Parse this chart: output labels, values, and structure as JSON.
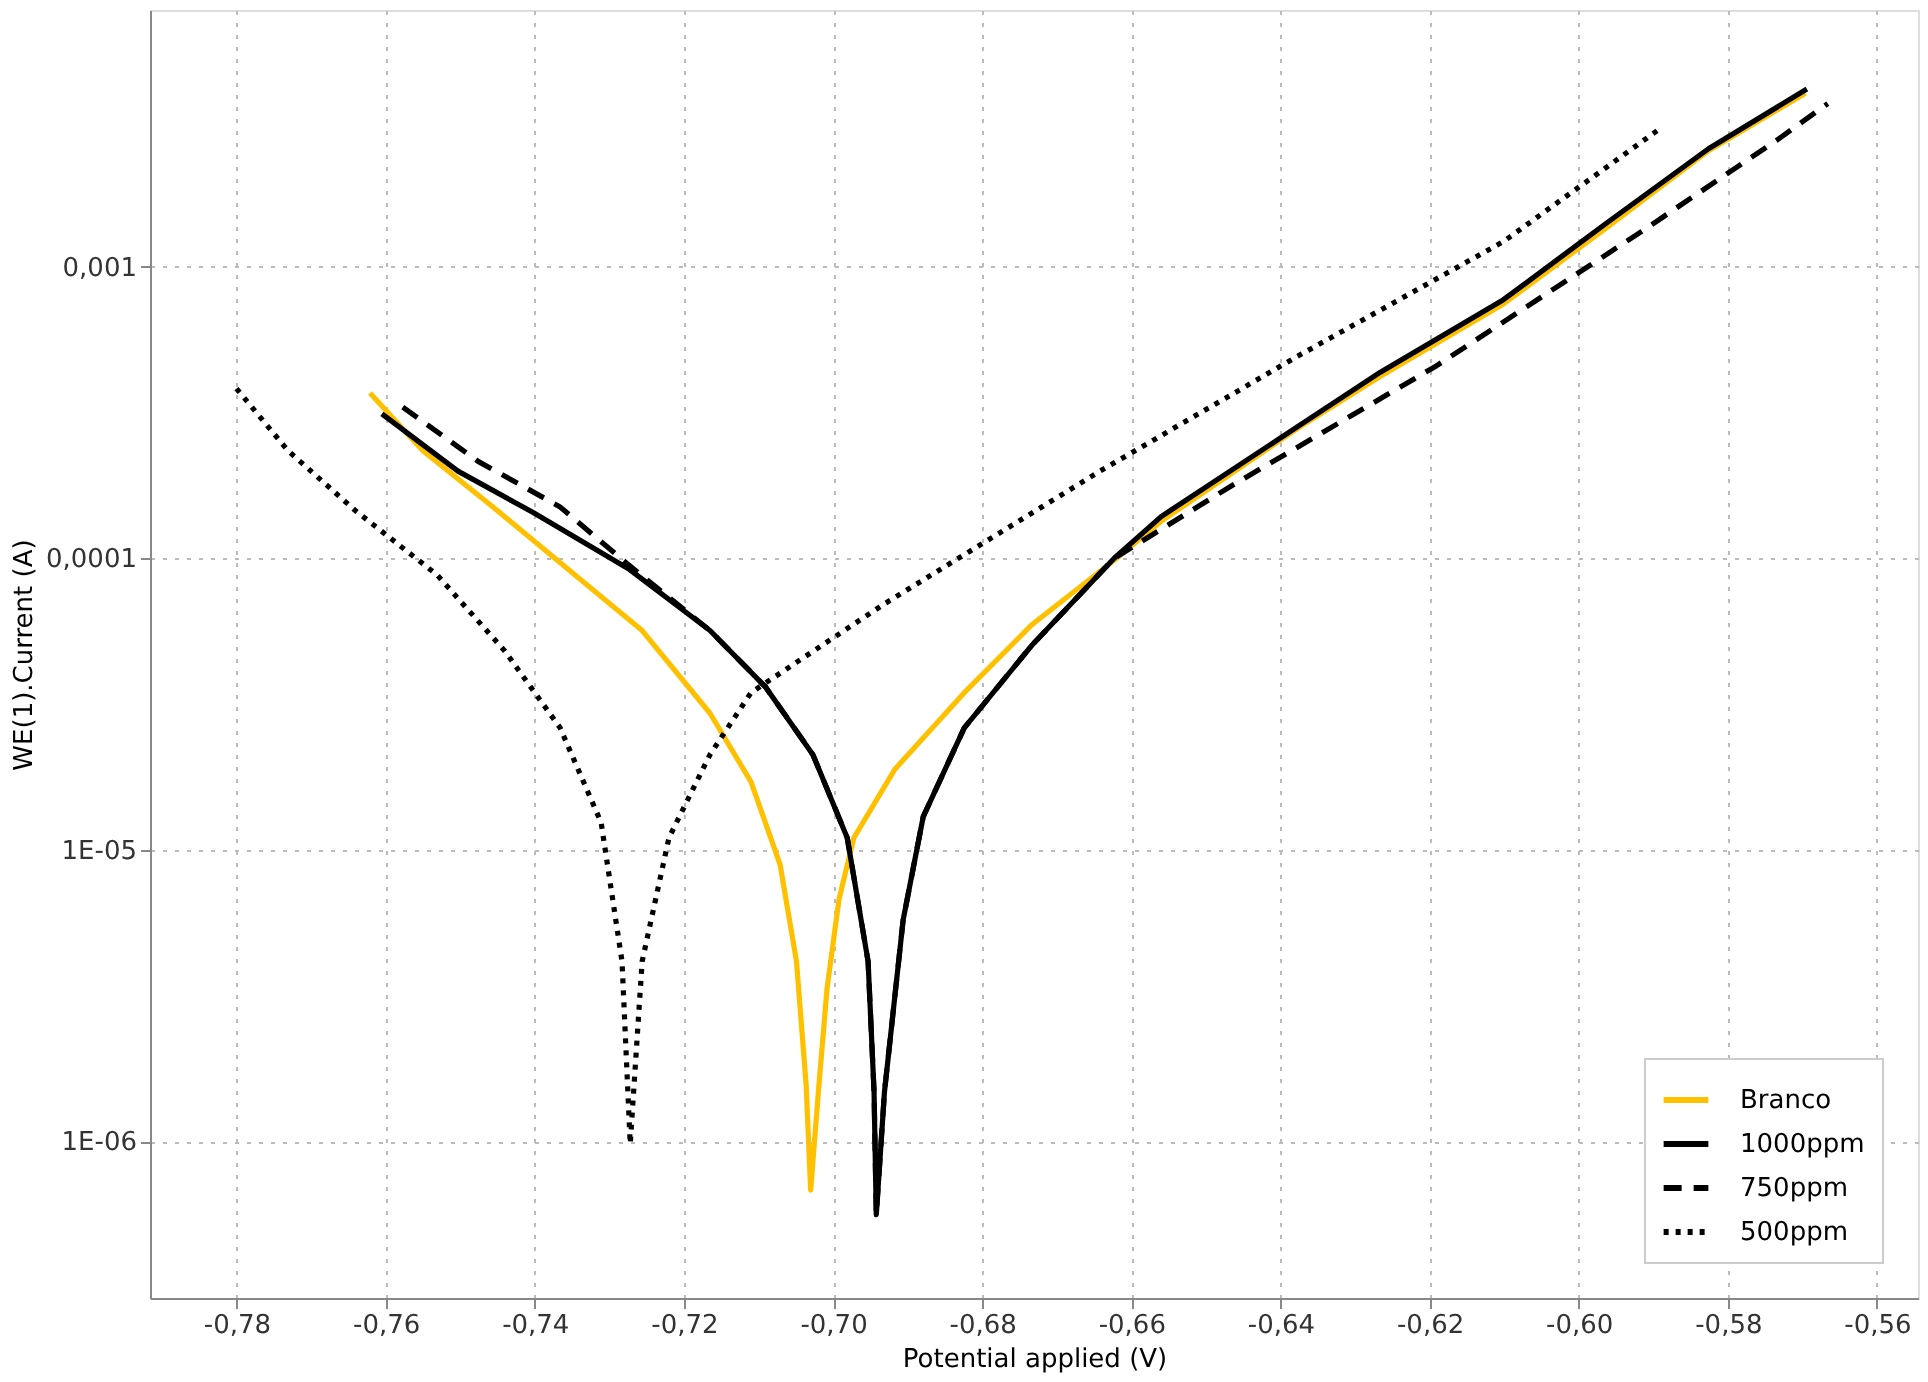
{
  "chart_data": {
    "type": "line",
    "xlabel": "Potential applied (V)",
    "ylabel": "WE(1).Current (A)",
    "log": "y",
    "grid": true,
    "legend": "bottom right",
    "xlim": [
      -0.7916,
      -0.5545
    ],
    "ylim": [
      2.9e-07,
      0.0076
    ],
    "xticks": [
      {
        "value": -0.78,
        "label": "-0,78"
      },
      {
        "value": -0.76,
        "label": "-0,76"
      },
      {
        "value": -0.74,
        "label": "-0,74"
      },
      {
        "value": -0.72,
        "label": "-0,72"
      },
      {
        "value": -0.7,
        "label": "-0,70"
      },
      {
        "value": -0.68,
        "label": "-0,68"
      },
      {
        "value": -0.66,
        "label": "-0,66"
      },
      {
        "value": -0.64,
        "label": "-0,64"
      },
      {
        "value": -0.62,
        "label": "-0,62"
      },
      {
        "value": -0.6,
        "label": "-0,60"
      },
      {
        "value": -0.58,
        "label": "-0,58"
      },
      {
        "value": -0.56,
        "label": "-0,56"
      }
    ],
    "yticks": [
      {
        "value": 1e-06,
        "label": "1E-06"
      },
      {
        "value": 1e-05,
        "label": "1E-05"
      },
      {
        "value": 0.0001,
        "label": "0,0001"
      },
      {
        "value": 0.001,
        "label": "0,001"
      }
    ],
    "series": [
      {
        "name": "Branco",
        "color": "#ffc000",
        "line_style": "solid",
        "x": [
          -0.7621,
          -0.755,
          -0.7456,
          -0.7346,
          -0.7256,
          -0.7165,
          -0.711,
          -0.7071,
          -0.7049,
          -0.7036,
          -0.703,
          -0.7019,
          -0.7008,
          -0.6992,
          -0.6972,
          -0.6917,
          -0.6824,
          -0.6733,
          -0.6623,
          -0.656,
          -0.6376,
          -0.6266,
          -0.6101,
          -0.5963,
          -0.5826,
          -0.5696
        ],
        "values": [
          0.000369,
          0.000234,
          0.00015,
          8.77e-05,
          5.65e-05,
          2.94e-05,
          1.71e-05,
          8.9e-06,
          4.14e-06,
          1.55e-06,
          6.8e-07,
          1.55e-06,
          3.35e-06,
          6.76e-06,
          1.1e-05,
          1.89e-05,
          3.46e-05,
          5.93e-05,
          9.84e-05,
          0.000134,
          0.00028,
          0.000421,
          0.000745,
          0.00136,
          0.0025,
          0.00394
        ]
      },
      {
        "name": "1000ppm",
        "color": "#000000",
        "line_style": "solid",
        "x": [
          -0.7605,
          -0.7503,
          -0.7401,
          -0.7275,
          -0.7165,
          -0.7091,
          -0.7027,
          -0.6981,
          -0.6953,
          -0.6945,
          -0.6942,
          -0.6931,
          -0.6906,
          -0.6879,
          -0.6824,
          -0.6733,
          -0.6623,
          -0.656,
          -0.6376,
          -0.6266,
          -0.6101,
          -0.5963,
          -0.5826,
          -0.5694
        ],
        "values": [
          0.000313,
          0.000199,
          0.000143,
          9.23e-05,
          5.65e-05,
          3.63e-05,
          2.12e-05,
          1.1e-05,
          4.14e-06,
          1.48e-06,
          5.6e-07,
          1.48e-06,
          5.74e-06,
          1.3e-05,
          2.62e-05,
          5.04e-05,
          0.0001,
          0.000139,
          0.000284,
          0.000435,
          0.000771,
          0.00141,
          0.00254,
          0.00407
        ]
      },
      {
        "name": "750ppm",
        "color": "#000000",
        "line_style": "dashed",
        "x": [
          -0.7577,
          -0.7476,
          -0.7366,
          -0.7275,
          -0.7165,
          -0.7091,
          -0.7027,
          -0.6981,
          -0.6953,
          -0.6945,
          -0.6942,
          -0.6931,
          -0.6906,
          -0.6879,
          -0.6824,
          -0.6733,
          -0.6623,
          -0.6466,
          -0.6191,
          -0.5916,
          -0.5735,
          -0.5666
        ],
        "values": [
          0.00033,
          0.000215,
          0.00015,
          9.53e-05,
          5.65e-05,
          3.63e-05,
          2.12e-05,
          1.1e-05,
          4.14e-06,
          1.48e-06,
          5.6e-07,
          1.48e-06,
          5.74e-06,
          1.3e-05,
          2.62e-05,
          5.04e-05,
          0.0001,
          0.000177,
          0.000457,
          0.00132,
          0.00271,
          0.00363
        ]
      },
      {
        "name": "500ppm",
        "color": "#000000",
        "line_style": "dotted",
        "x": [
          -0.78,
          -0.7731,
          -0.7641,
          -0.7531,
          -0.744,
          -0.7366,
          -0.7311,
          -0.7283,
          -0.7272,
          -0.7256,
          -0.722,
          -0.7165,
          -0.711,
          -0.6998,
          -0.6931,
          -0.6642,
          -0.6376,
          -0.6101,
          -0.5894
        ],
        "values": [
          0.000382,
          0.000234,
          0.000146,
          8.77e-05,
          4.8e-05,
          2.62e-05,
          1.24e-05,
          4.14e-06,
          9.8e-07,
          4.14e-06,
          1.1e-05,
          2.12e-05,
          3.46e-05,
          5.37e-05,
          6.98e-05,
          0.000199,
          0.000495,
          0.00122,
          0.00294
        ]
      }
    ]
  }
}
